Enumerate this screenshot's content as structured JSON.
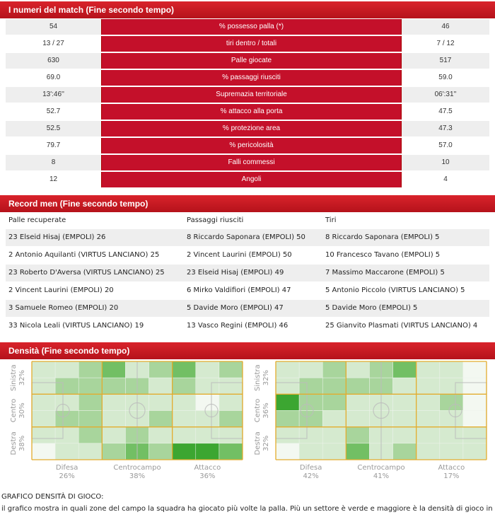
{
  "stats": {
    "title": "I numeri del match (Fine secondo tempo)",
    "rows": [
      {
        "home": "54",
        "label": "% possesso palla (*)",
        "away": "46"
      },
      {
        "home": "13 / 27",
        "label": "tiri dentro / totali",
        "away": "7 / 12"
      },
      {
        "home": "630",
        "label": "Palle giocate",
        "away": "517"
      },
      {
        "home": "69.0",
        "label": "% passaggi riusciti",
        "away": "59.0"
      },
      {
        "home": "13':46''",
        "label": "Supremazia territoriale",
        "away": "06':31''"
      },
      {
        "home": "52.7",
        "label": "% attacco alla porta",
        "away": "47.5"
      },
      {
        "home": "52.5",
        "label": "% protezione area",
        "away": "47.3"
      },
      {
        "home": "79.7",
        "label": "% pericolosità",
        "away": "57.0"
      },
      {
        "home": "8",
        "label": "Falli commessi",
        "away": "10"
      },
      {
        "home": "12",
        "label": "Angoli",
        "away": "4"
      }
    ]
  },
  "records": {
    "title": "Record men (Fine secondo tempo)",
    "columns": [
      {
        "heading": "Palle recuperate",
        "items": [
          "23 Elseid Hisaj (EMPOLI) 26",
          "2 Antonio Aquilanti (VIRTUS LANCIANO) 25",
          "23 Roberto D'Aversa (VIRTUS LANCIANO) 25",
          "2 Vincent Laurini (EMPOLI) 20",
          "3 Samuele Romeo (EMPOLI) 20",
          "33 Nicola Leali (VIRTUS LANCIANO) 19"
        ]
      },
      {
        "heading": "Passaggi riusciti",
        "items": [
          "8 Riccardo Saponara (EMPOLI) 50",
          "2 Vincent Laurini (EMPOLI) 50",
          "23 Elseid Hisaj (EMPOLI) 49",
          "6 Mirko Valdifiori (EMPOLI) 47",
          "5 Davide Moro (EMPOLI) 47",
          "13 Vasco Regini (EMPOLI) 46"
        ]
      },
      {
        "heading": "Tiri",
        "items": [
          "8 Riccardo Saponara (EMPOLI) 5",
          "10 Francesco Tavano (EMPOLI) 5",
          "7 Massimo Maccarone (EMPOLI) 5",
          "5 Antonio Piccolo (VIRTUS LANCIANO) 5",
          "5 Davide Moro (EMPOLI) 5",
          "25 Gianvito Plasmati (VIRTUS LANCIANO) 4"
        ]
      }
    ]
  },
  "density": {
    "title": "Densità (Fine secondo tempo)",
    "pitches": [
      {
        "rows": [
          {
            "label": "Sinistra",
            "pct": "32%"
          },
          {
            "label": "Centro",
            "pct": "30%"
          },
          {
            "label": "Destra",
            "pct": "38%"
          }
        ],
        "zones": [
          {
            "label": "Difesa",
            "pct": "26%"
          },
          {
            "label": "Centrocampo",
            "pct": "38%"
          },
          {
            "label": "Attacco",
            "pct": "36%"
          }
        ],
        "cells": [
          [
            1,
            1,
            2,
            3,
            1,
            2,
            3,
            1,
            2
          ],
          [
            1,
            2,
            2,
            2,
            2,
            1,
            2,
            1,
            1
          ],
          [
            1,
            1,
            2,
            1,
            1,
            1,
            1,
            0,
            1
          ],
          [
            1,
            2,
            2,
            1,
            1,
            2,
            1,
            1,
            2
          ],
          [
            1,
            1,
            2,
            1,
            2,
            1,
            1,
            1,
            1
          ],
          [
            0,
            1,
            1,
            2,
            3,
            2,
            4,
            4,
            3
          ]
        ]
      },
      {
        "rows": [
          {
            "label": "Sinistra",
            "pct": "32%"
          },
          {
            "label": "Centro",
            "pct": "36%"
          },
          {
            "label": "Destra",
            "pct": "32%"
          }
        ],
        "zones": [
          {
            "label": "Difesa",
            "pct": "42%"
          },
          {
            "label": "Centrocampo",
            "pct": "41%"
          },
          {
            "label": "Attacco",
            "pct": "17%"
          }
        ],
        "cells": [
          [
            1,
            1,
            2,
            1,
            2,
            3,
            1,
            1,
            0
          ],
          [
            1,
            2,
            2,
            2,
            2,
            1,
            1,
            1,
            0
          ],
          [
            4,
            2,
            2,
            1,
            1,
            1,
            1,
            2,
            0
          ],
          [
            2,
            2,
            1,
            1,
            1,
            1,
            1,
            1,
            0
          ],
          [
            1,
            1,
            1,
            2,
            1,
            1,
            1,
            1,
            1
          ],
          [
            0,
            1,
            1,
            3,
            1,
            2,
            1,
            1,
            1
          ]
        ]
      }
    ]
  },
  "note": {
    "title": "GRAFICO DENSITÀ DI GIOCO:",
    "text": "il grafico mostra in quali zone del campo la squadra ha giocato più volte la palla. Più un settore è verde e maggiore è la densità di gioco in quel"
  }
}
